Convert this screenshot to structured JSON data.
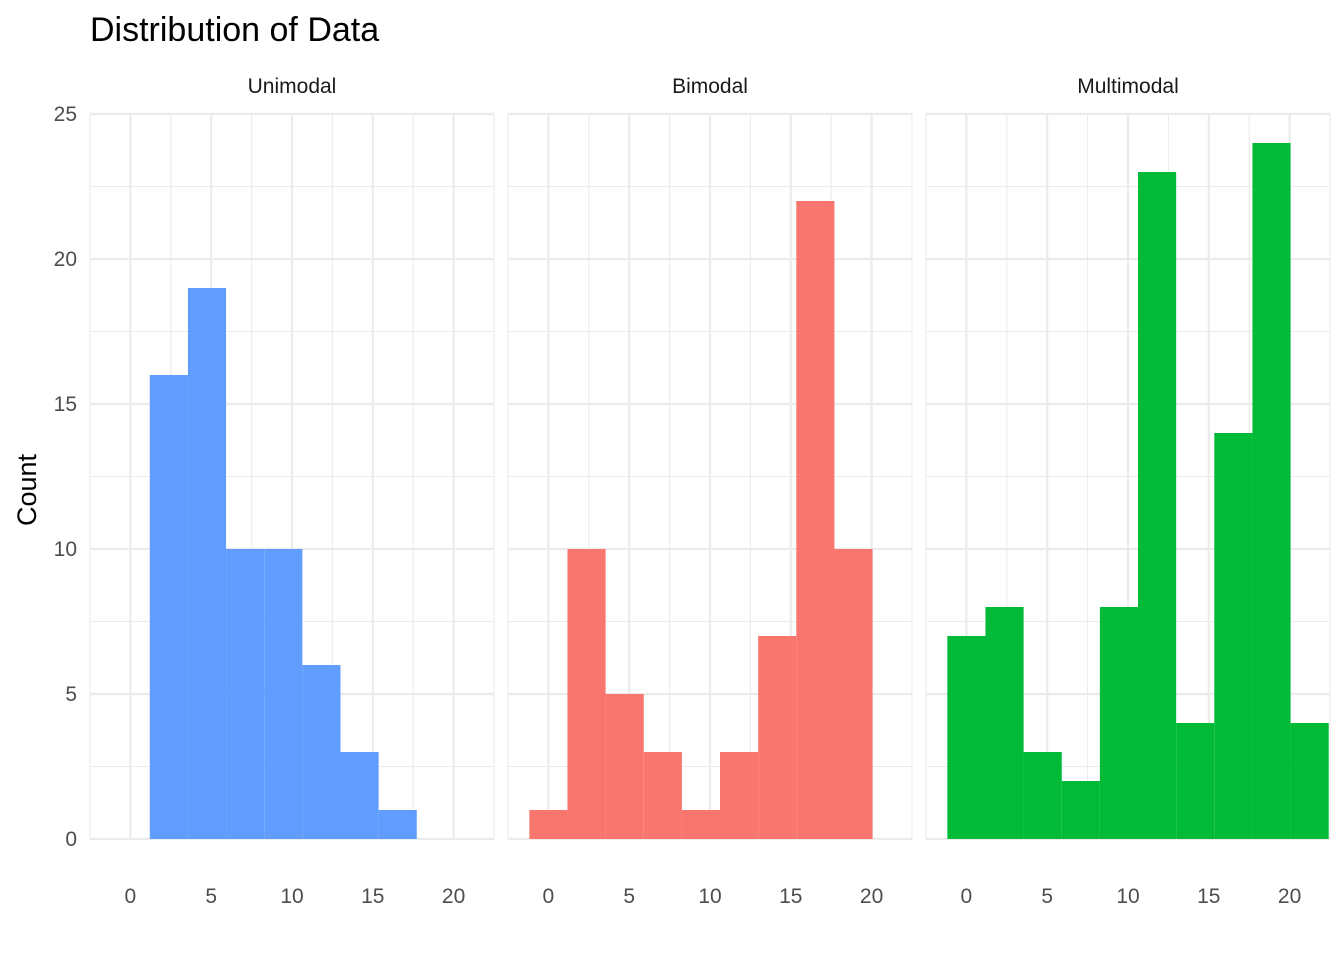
{
  "chart_data": {
    "type": "bar",
    "title": "Distribution of Data",
    "xlabel": "",
    "ylabel": "Count",
    "grid": true,
    "legend": "none",
    "ylim": [
      0,
      25
    ],
    "yticks": [
      0,
      5,
      10,
      15,
      20,
      25
    ],
    "xlim": [
      -2.5,
      22.5
    ],
    "xticks": [
      0,
      5,
      10,
      15,
      20
    ],
    "panels": [
      {
        "name": "Unimodal",
        "color": "#619CFF",
        "bins": [
          {
            "x0": 1.2,
            "x1": 3.56,
            "count": 16
          },
          {
            "x0": 3.56,
            "x1": 5.92,
            "count": 19
          },
          {
            "x0": 5.92,
            "x1": 8.28,
            "count": 10
          },
          {
            "x0": 8.28,
            "x1": 10.64,
            "count": 10
          },
          {
            "x0": 10.64,
            "x1": 13.0,
            "count": 6
          },
          {
            "x0": 13.0,
            "x1": 15.36,
            "count": 3
          },
          {
            "x0": 15.36,
            "x1": 17.72,
            "count": 1
          }
        ]
      },
      {
        "name": "Bimodal",
        "color": "#F8766D",
        "bins": [
          {
            "x0": -1.18,
            "x1": 1.18,
            "count": 1
          },
          {
            "x0": 1.18,
            "x1": 3.54,
            "count": 10
          },
          {
            "x0": 3.54,
            "x1": 5.9,
            "count": 5
          },
          {
            "x0": 5.9,
            "x1": 8.26,
            "count": 3
          },
          {
            "x0": 8.26,
            "x1": 10.62,
            "count": 1
          },
          {
            "x0": 10.62,
            "x1": 12.98,
            "count": 3
          },
          {
            "x0": 12.98,
            "x1": 15.34,
            "count": 7
          },
          {
            "x0": 15.34,
            "x1": 17.7,
            "count": 22
          },
          {
            "x0": 17.7,
            "x1": 20.06,
            "count": 10
          }
        ]
      },
      {
        "name": "Multimodal",
        "color": "#00BA38",
        "bins": [
          {
            "x0": -1.18,
            "x1": 1.18,
            "count": 7
          },
          {
            "x0": 1.18,
            "x1": 3.54,
            "count": 8
          },
          {
            "x0": 3.54,
            "x1": 5.9,
            "count": 3
          },
          {
            "x0": 5.9,
            "x1": 8.26,
            "count": 2
          },
          {
            "x0": 8.26,
            "x1": 10.62,
            "count": 8
          },
          {
            "x0": 10.62,
            "x1": 12.98,
            "count": 23
          },
          {
            "x0": 12.98,
            "x1": 15.34,
            "count": 4
          },
          {
            "x0": 15.34,
            "x1": 17.7,
            "count": 14
          },
          {
            "x0": 17.7,
            "x1": 20.06,
            "count": 24
          },
          {
            "x0": 20.06,
            "x1": 22.42,
            "count": 4
          }
        ]
      }
    ]
  }
}
